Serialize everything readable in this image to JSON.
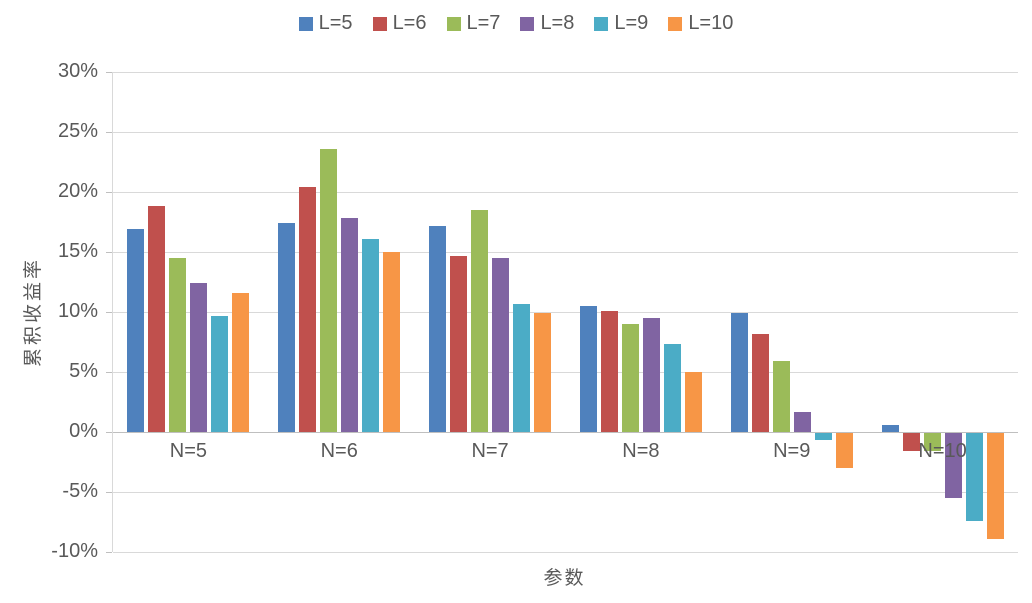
{
  "chart_data": {
    "type": "bar",
    "title": "",
    "xlabel": "参数",
    "ylabel": "累积收益率",
    "grid": true,
    "legend_position": "top",
    "categories": [
      "N=5",
      "N=6",
      "N=7",
      "N=8",
      "N=9",
      "N=10"
    ],
    "series": [
      {
        "name": "L=5",
        "color": "#4F81BD",
        "values": [
          16.9,
          17.4,
          17.2,
          10.5,
          9.9,
          0.6
        ]
      },
      {
        "name": "L=6",
        "color": "#C0504D",
        "values": [
          18.8,
          20.4,
          14.7,
          10.1,
          8.2,
          -1.5
        ]
      },
      {
        "name": "L=7",
        "color": "#9BBB59",
        "values": [
          14.5,
          23.6,
          18.5,
          9.0,
          5.9,
          -1.5
        ]
      },
      {
        "name": "L=8",
        "color": "#8064A2",
        "values": [
          12.4,
          17.8,
          14.5,
          9.5,
          1.7,
          -5.4
        ]
      },
      {
        "name": "L=9",
        "color": "#4BACC6",
        "values": [
          9.7,
          16.1,
          10.7,
          7.3,
          -0.6,
          -7.3
        ]
      },
      {
        "name": "L=10",
        "color": "#F79646",
        "values": [
          11.6,
          15.0,
          9.9,
          5.0,
          -2.9,
          -8.8
        ]
      }
    ],
    "y_axis": {
      "min": -10,
      "max": 30,
      "step": 5,
      "tick_format": "percent",
      "ticks": [
        "30%",
        "25%",
        "20%",
        "15%",
        "10%",
        "5%",
        "0%",
        "-5%",
        "-10%"
      ]
    },
    "text_color": "#595959",
    "grid_color": "#D9D9D9",
    "axis_color": "#BFBFBF"
  }
}
